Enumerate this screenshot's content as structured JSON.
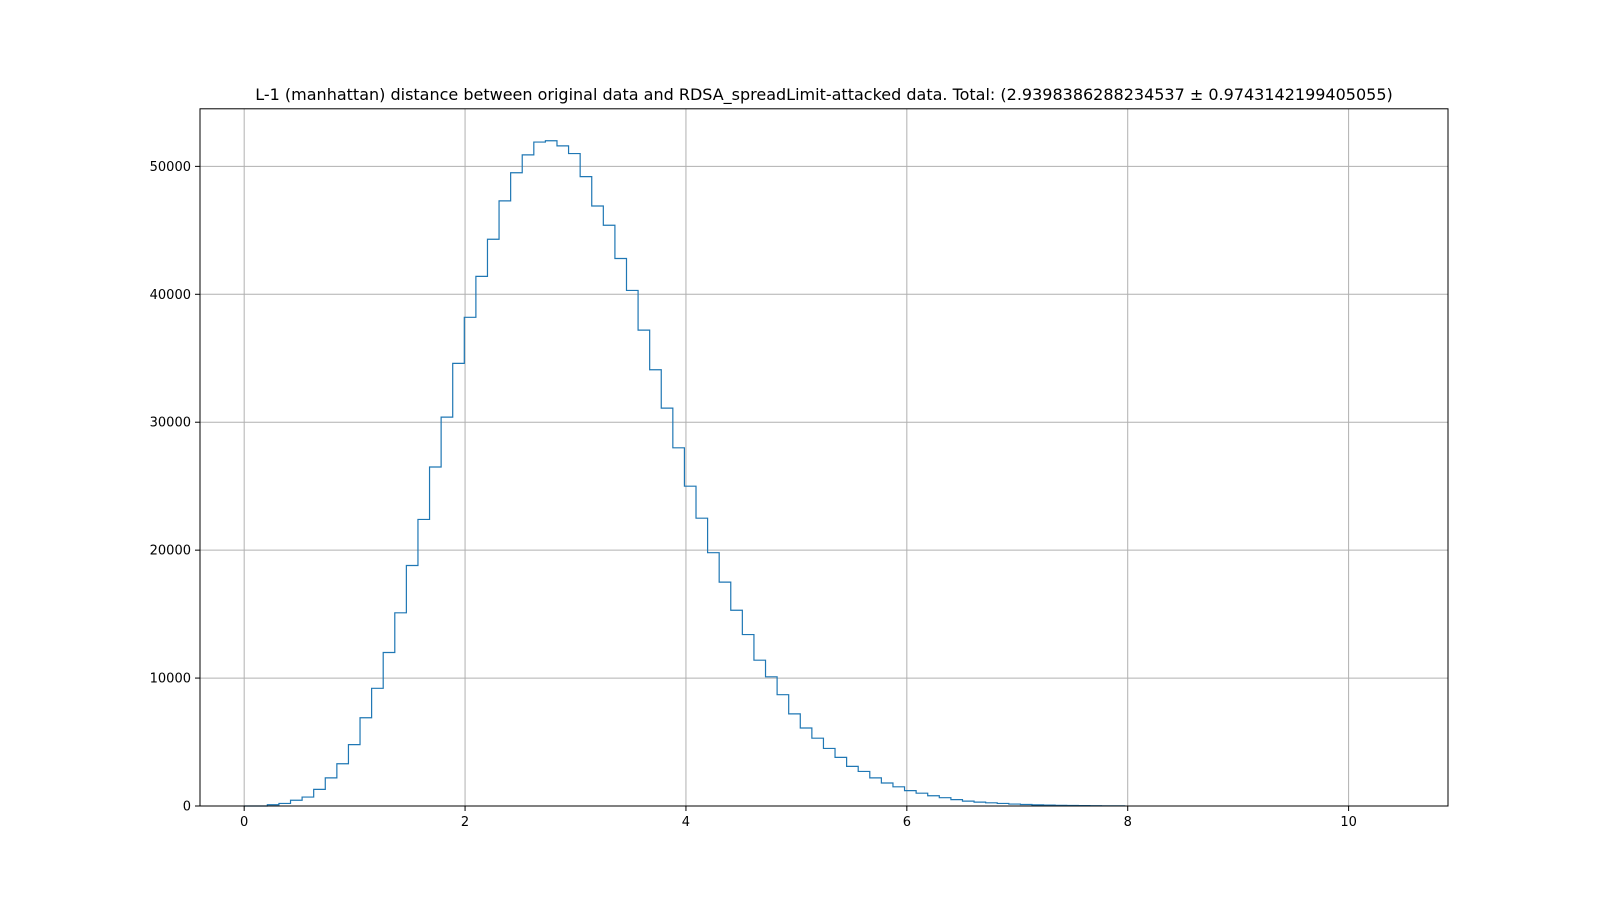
{
  "chart_data": {
    "type": "histogram",
    "title": "L-1 (manhattan) distance between original data and RDSA_spreadLimit-attacked data. Total: (2.9398386288234537 ± 0.9743142199405055)",
    "xlabel": "",
    "ylabel": "",
    "xlim": [
      -0.4,
      10.9
    ],
    "ylim": [
      0,
      54500
    ],
    "xticks": [
      0,
      2,
      4,
      6,
      8,
      10
    ],
    "xtick_labels": [
      "0",
      "2",
      "4",
      "6",
      "8",
      "10"
    ],
    "yticks": [
      0,
      10000,
      20000,
      30000,
      40000,
      50000
    ],
    "ytick_labels": [
      "0",
      "10000",
      "20000",
      "30000",
      "40000",
      "50000"
    ],
    "grid": true,
    "histtype": "step",
    "color": "#1f77b4",
    "bin_start": 0.0,
    "bin_width": 0.1049,
    "counts": [
      0,
      0,
      100,
      200,
      450,
      700,
      1300,
      2200,
      3300,
      4800,
      6900,
      9200,
      12000,
      15100,
      18800,
      22400,
      26500,
      30400,
      34600,
      38200,
      41400,
      44300,
      47300,
      49500,
      50900,
      51900,
      52000,
      51600,
      51000,
      49200,
      46900,
      45400,
      42800,
      40300,
      37200,
      34100,
      31100,
      28000,
      25000,
      22500,
      19800,
      17500,
      15300,
      13400,
      11400,
      10100,
      8700,
      7200,
      6100,
      5300,
      4500,
      3800,
      3100,
      2700,
      2200,
      1800,
      1500,
      1200,
      1000,
      800,
      650,
      500,
      380,
      300,
      250,
      200,
      150,
      120,
      90,
      70,
      50,
      40,
      30,
      20,
      15,
      10
    ]
  }
}
